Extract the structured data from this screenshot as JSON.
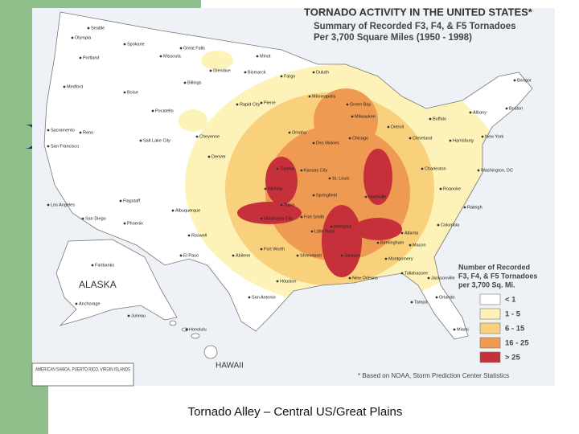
{
  "map": {
    "title": "TORNADO ACTIVITY IN THE UNITED STATES*",
    "subtitle_lines": [
      "Summary of Recorded F3, F4, & F5 Tornadoes",
      "Per 3,700 Square Miles (1950 - 1998)"
    ],
    "legend_title_lines": [
      "Number of Recorded",
      "F3, F4, & F5 Tornadoes",
      "per 3,700 Sq. Mi."
    ],
    "legend": [
      {
        "label": "< 1",
        "color": "#ffffff"
      },
      {
        "label": "1 - 5",
        "color": "#fdf3b8"
      },
      {
        "label": "6 - 15",
        "color": "#f9d07c"
      },
      {
        "label": "16 - 25",
        "color": "#ef9a52"
      },
      {
        "label": "> 25",
        "color": "#c6303a"
      }
    ],
    "insets": [
      "ALASKA",
      "HAWAII",
      "AMERICAN SAMOA, PUERTO RICO, VIRGIN ISLANDS"
    ],
    "cities": [
      "Seattle",
      "Olympia",
      "Spokane",
      "Portland",
      "Missoula",
      "Great Falls",
      "Billings",
      "Glendive",
      "Minot",
      "Bismarck",
      "Fargo",
      "Duluth",
      "Medford",
      "Boise",
      "Pocatello",
      "Rapid City",
      "Pierre",
      "Minneapolis",
      "Green Bay",
      "Milwaukee",
      "Detroit",
      "Buffalo",
      "Albany",
      "Boston",
      "Bangor",
      "Sacramento",
      "Reno",
      "San Francisco",
      "Salt Lake City",
      "Cheyenne",
      "Denver",
      "Omaha",
      "Des Moines",
      "Chicago",
      "Cleveland",
      "Harrisburg",
      "New York",
      "Washington, DC",
      "Topeka",
      "Kansas City",
      "St. Louis",
      "Charleston",
      "Los Angeles",
      "San Diego",
      "Flagstaff",
      "Phoenix",
      "Albuquerque",
      "Wichita",
      "Springfield",
      "Nashville",
      "Roanoke",
      "Raleigh",
      "Tulsa",
      "Oklahoma City",
      "Fort Smith",
      "Little Rock",
      "Memphis",
      "Atlanta",
      "Columbia",
      "Roswell",
      "El Paso",
      "Abilene",
      "Fort Worth",
      "Shreveport",
      "Jackson",
      "Birmingham",
      "Montgomery",
      "Macon",
      "Houston",
      "San Antonio",
      "New Orleans",
      "Tallahassee",
      "Jacksonville",
      "Orlando",
      "Tampa",
      "Miami",
      "Fairbanks",
      "Anchorage",
      "Juneau",
      "Honolulu"
    ],
    "footnote": "* Based on NOAA, Storm Prediction Center Statistics"
  },
  "caption": "Tornado Alley – Central US/Great Plains"
}
